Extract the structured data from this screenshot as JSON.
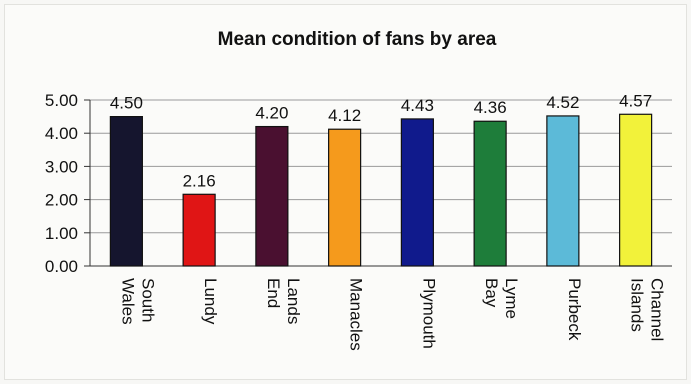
{
  "chart_data": {
    "type": "bar",
    "title": "Mean condition of fans by area",
    "xlabel": "",
    "ylabel": "",
    "ylim": [
      0,
      5
    ],
    "yticks": [
      "0.00",
      "1.00",
      "2.00",
      "3.00",
      "4.00",
      "5.00"
    ],
    "grid": true,
    "legend": "none",
    "categories": [
      [
        "South",
        "Wales"
      ],
      [
        "Lundy"
      ],
      [
        "Lands",
        "End"
      ],
      [
        "Manacles"
      ],
      [
        "Plymouth"
      ],
      [
        "Lyme",
        "Bay"
      ],
      [
        "Purbeck"
      ],
      [
        "Channel",
        "Islands"
      ]
    ],
    "values": [
      4.5,
      2.16,
      4.2,
      4.12,
      4.43,
      4.36,
      4.52,
      4.57
    ],
    "data_labels": [
      "4.50",
      "2.16",
      "4.20",
      "4.12",
      "4.43",
      "4.36",
      "4.52",
      "4.57"
    ],
    "colors": [
      "#15152e",
      "#e01515",
      "#4a1030",
      "#f59a1c",
      "#101a8c",
      "#1e7d3a",
      "#5cbad8",
      "#f2f23a"
    ]
  }
}
